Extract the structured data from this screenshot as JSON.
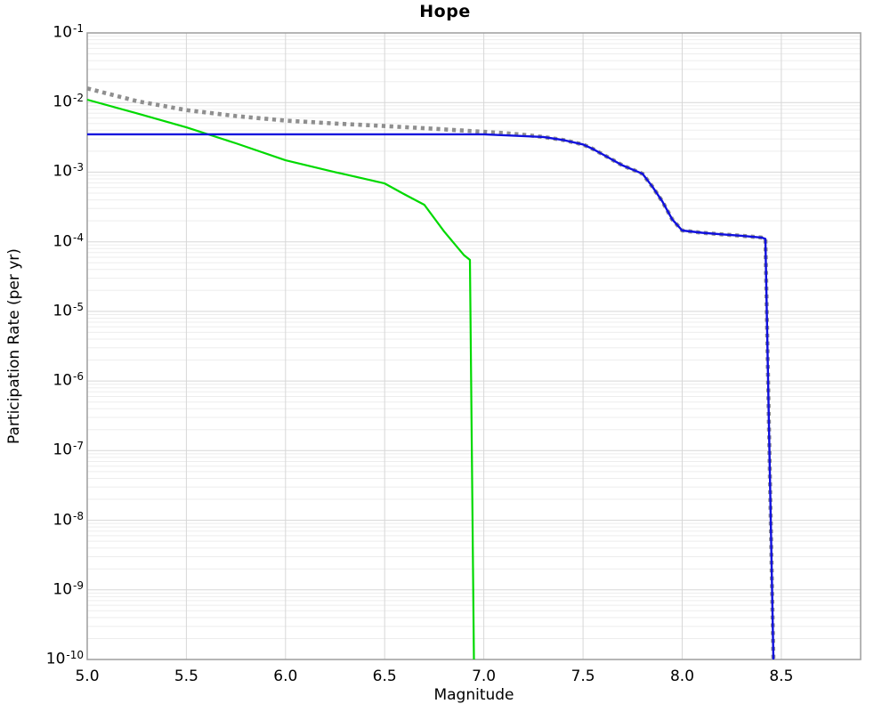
{
  "title": "Hope",
  "chart_data": {
    "type": "line",
    "title": "Hope",
    "xlabel": "Magnitude",
    "ylabel": "Participation Rate (per yr)",
    "xlim": [
      5.0,
      8.9
    ],
    "yscale": "log",
    "ylim": [
      1e-10,
      0.1
    ],
    "ylim_exponents": [
      -10,
      -1
    ],
    "grid": true,
    "legend_position": "none",
    "xticks": [
      5.0,
      5.5,
      6.0,
      6.5,
      7.0,
      7.5,
      8.0,
      8.5
    ],
    "xtick_labels": [
      "5.0",
      "5.5",
      "6.0",
      "6.5",
      "7.0",
      "7.5",
      "8.0",
      "8.5"
    ],
    "ytick_exponents": [
      -1,
      -2,
      -3,
      -4,
      -5,
      -6,
      -7,
      -8,
      -9,
      -10
    ],
    "colors": {
      "dotted_gray": "#8f8f8f",
      "green": "#00d900",
      "blue": "#1010dd",
      "major_grid": "#d7d7d7",
      "minor_grid": "#ededed",
      "axis_border": "#a3a3a3"
    },
    "series": [
      {
        "name": "gray-dotted-curve",
        "color": "#8f8f8f",
        "style": "dotted",
        "width": 4.6,
        "points": [
          [
            5.0,
            0.016
          ],
          [
            5.25,
            0.0105
          ],
          [
            5.5,
            0.0078
          ],
          [
            5.75,
            0.0064
          ],
          [
            6.0,
            0.0055
          ],
          [
            6.25,
            0.005
          ],
          [
            6.5,
            0.0046
          ],
          [
            6.75,
            0.0042
          ],
          [
            7.0,
            0.0038
          ],
          [
            7.1,
            0.00365
          ],
          [
            7.2,
            0.00345
          ],
          [
            7.3,
            0.0032
          ],
          [
            7.4,
            0.0029
          ],
          [
            7.5,
            0.0025
          ],
          [
            7.55,
            0.00215
          ],
          [
            7.6,
            0.0018
          ],
          [
            7.7,
            0.00125
          ],
          [
            7.8,
            0.00095
          ],
          [
            7.85,
            0.00062
          ],
          [
            7.9,
            0.00038
          ],
          [
            7.95,
            0.00021
          ],
          [
            8.0,
            0.000145
          ],
          [
            8.1,
            0.000135
          ],
          [
            8.2,
            0.000128
          ],
          [
            8.3,
            0.000122
          ],
          [
            8.4,
            0.000115
          ],
          [
            8.42,
            0.00011
          ],
          [
            8.46,
            1e-10
          ]
        ]
      },
      {
        "name": "green-curve",
        "color": "#00d900",
        "style": "solid",
        "width": 2.2,
        "points": [
          [
            5.0,
            0.011
          ],
          [
            5.25,
            0.007
          ],
          [
            5.5,
            0.0044
          ],
          [
            5.75,
            0.0026
          ],
          [
            6.0,
            0.00148
          ],
          [
            6.25,
            0.001
          ],
          [
            6.5,
            0.00069
          ],
          [
            6.6,
            0.00048
          ],
          [
            6.7,
            0.00034
          ],
          [
            6.8,
            0.00014
          ],
          [
            6.9,
            6.4e-05
          ],
          [
            6.93,
            5.5e-05
          ],
          [
            6.95,
            1e-10
          ]
        ]
      },
      {
        "name": "blue-curve",
        "color": "#1010dd",
        "style": "solid",
        "width": 2.4,
        "points": [
          [
            5.0,
            0.0035
          ],
          [
            6.0,
            0.0035
          ],
          [
            6.5,
            0.0035
          ],
          [
            7.0,
            0.0035
          ],
          [
            7.1,
            0.0034
          ],
          [
            7.2,
            0.0033
          ],
          [
            7.3,
            0.0032
          ],
          [
            7.4,
            0.0029
          ],
          [
            7.5,
            0.0025
          ],
          [
            7.55,
            0.00215
          ],
          [
            7.6,
            0.0018
          ],
          [
            7.7,
            0.00125
          ],
          [
            7.8,
            0.00095
          ],
          [
            7.85,
            0.00062
          ],
          [
            7.9,
            0.00038
          ],
          [
            7.95,
            0.00021
          ],
          [
            8.0,
            0.000145
          ],
          [
            8.1,
            0.000135
          ],
          [
            8.2,
            0.000128
          ],
          [
            8.3,
            0.000122
          ],
          [
            8.4,
            0.000115
          ],
          [
            8.42,
            0.00011
          ],
          [
            8.46,
            1e-10
          ]
        ]
      }
    ]
  }
}
